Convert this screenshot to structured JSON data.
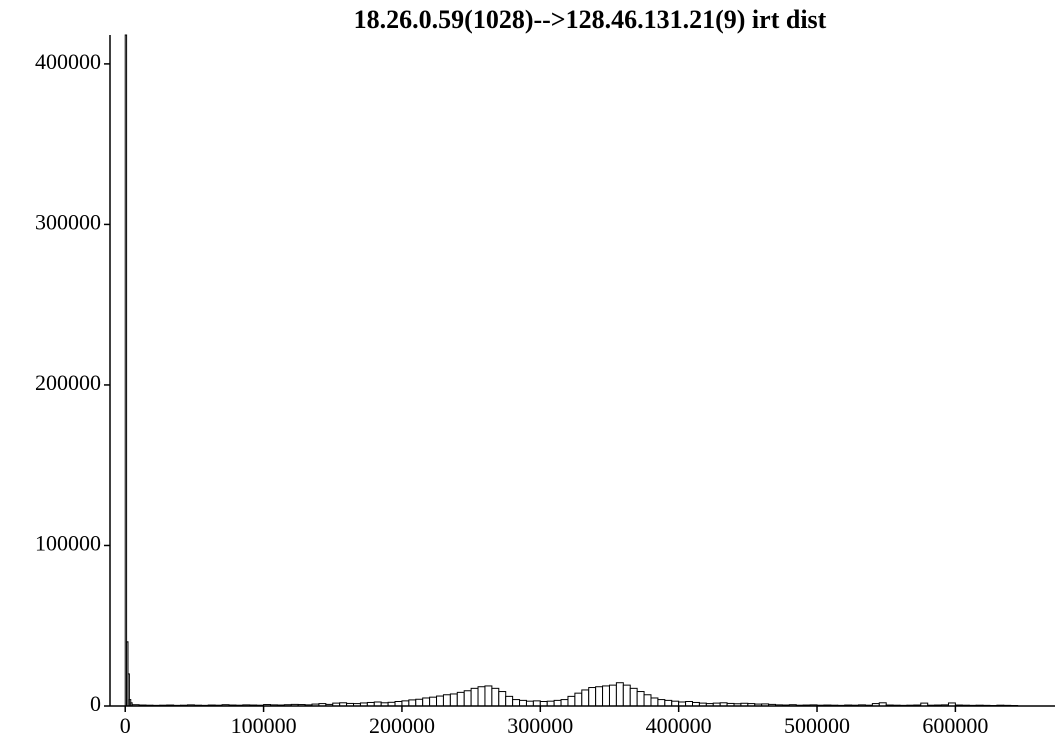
{
  "chart_data": {
    "type": "histogram",
    "title": "18.26.0.59(1028)-->128.46.131.21(9) irt dist",
    "bins": [
      0,
      1000,
      2000,
      3000,
      4000,
      5000,
      10000,
      15000,
      20000,
      25000,
      30000,
      35000,
      40000,
      45000,
      50000,
      55000,
      60000,
      65000,
      70000,
      75000,
      80000,
      85000,
      90000,
      95000,
      100000,
      105000,
      110000,
      115000,
      120000,
      125000,
      130000,
      135000,
      140000,
      145000,
      150000,
      155000,
      160000,
      165000,
      170000,
      175000,
      180000,
      185000,
      190000,
      195000,
      200000,
      205000,
      210000,
      215000,
      220000,
      225000,
      230000,
      235000,
      240000,
      245000,
      250000,
      255000,
      260000,
      265000,
      270000,
      275000,
      280000,
      285000,
      290000,
      295000,
      300000,
      305000,
      310000,
      315000,
      320000,
      325000,
      330000,
      335000,
      340000,
      345000,
      350000,
      355000,
      360000,
      365000,
      370000,
      375000,
      380000,
      385000,
      390000,
      395000,
      400000,
      405000,
      410000,
      415000,
      420000,
      425000,
      430000,
      435000,
      440000,
      445000,
      450000,
      455000,
      460000,
      465000,
      470000,
      475000,
      480000,
      485000,
      490000,
      495000,
      500000,
      505000,
      510000,
      515000,
      520000,
      525000,
      530000,
      535000,
      540000,
      545000,
      550000,
      555000,
      560000,
      565000,
      570000,
      575000,
      580000,
      585000,
      590000,
      595000,
      600000,
      605000,
      610000,
      615000,
      620000,
      625000,
      630000,
      635000,
      640000,
      645000
    ],
    "values": [
      418000,
      40000,
      20000,
      4000,
      2000,
      800,
      600,
      500,
      400,
      500,
      600,
      400,
      500,
      700,
      500,
      400,
      600,
      500,
      800,
      600,
      500,
      700,
      600,
      500,
      900,
      700,
      600,
      800,
      1000,
      900,
      700,
      1200,
      1500,
      1000,
      1800,
      2000,
      1600,
      1500,
      1900,
      2200,
      2500,
      2000,
      2300,
      2800,
      3200,
      3800,
      4200,
      5000,
      5500,
      6200,
      7000,
      7500,
      8500,
      9500,
      11000,
      12000,
      12500,
      11000,
      9000,
      6000,
      4000,
      3500,
      3000,
      3200,
      2800,
      3000,
      3500,
      4000,
      6000,
      8000,
      10000,
      11500,
      12000,
      12500,
      13000,
      14500,
      13000,
      11000,
      9000,
      7000,
      5000,
      4000,
      3500,
      3000,
      2500,
      2800,
      2200,
      1800,
      1500,
      1800,
      2000,
      1600,
      1400,
      1700,
      1500,
      1200,
      1300,
      1000,
      700,
      600,
      800,
      500,
      600,
      700,
      500,
      600,
      500,
      400,
      600,
      500,
      700,
      500,
      1500,
      2000,
      600,
      500,
      400,
      500,
      600,
      1800,
      500,
      600,
      700,
      1900,
      600,
      500,
      400,
      500,
      400,
      300,
      500,
      400,
      300
    ],
    "xlim": [
      -11000,
      672000
    ],
    "ylim": [
      0,
      418000
    ],
    "xticks": [
      0,
      100000,
      200000,
      300000,
      400000,
      500000,
      600000
    ],
    "yticks": [
      0,
      100000,
      200000,
      300000,
      400000
    ],
    "color": "#ffffff",
    "edgecolor": "#000000"
  }
}
